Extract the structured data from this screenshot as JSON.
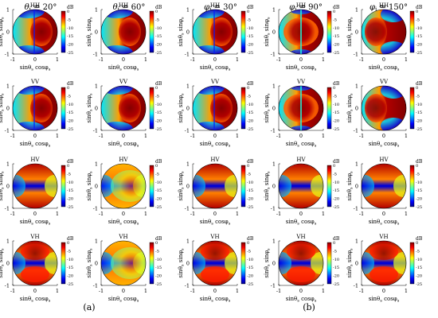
{
  "figure": {
    "column_headers": [
      {
        "var": "θ",
        "sub": "i",
        "value": " = 20°"
      },
      {
        "var": "θ",
        "sub": "i",
        "value": " = 60°"
      },
      {
        "var": "φ",
        "sub": "i",
        "value": " = 30°"
      },
      {
        "var": "φ",
        "sub": "i",
        "value": " = 90°"
      },
      {
        "var": "φ",
        "sub": "i",
        "value": " = 150°"
      }
    ],
    "row_titles": [
      "HH",
      "VV",
      "HV",
      "VH"
    ],
    "panel_labels": [
      "(a)",
      "(b)"
    ],
    "x_axis_label": "sinθ",
    "x_axis_label_parts": {
      "a": "sinθ",
      "a_sub": "s",
      "b": " cosφ",
      "b_sub": "s"
    },
    "y_axis_label_parts": {
      "a": "sinθ",
      "a_sub": "s",
      "b": " sinφ",
      "b_sub": "s"
    },
    "x_ticks": [
      "-1",
      "0",
      "1"
    ],
    "y_ticks": [
      "1",
      "0",
      "-1"
    ],
    "colorbar": {
      "unit": "dB",
      "ticks": [
        "0",
        "-5",
        "-10",
        "-15",
        "-20",
        "-25"
      ],
      "range": [
        -25,
        0
      ],
      "colormap": "jet"
    }
  }
}
